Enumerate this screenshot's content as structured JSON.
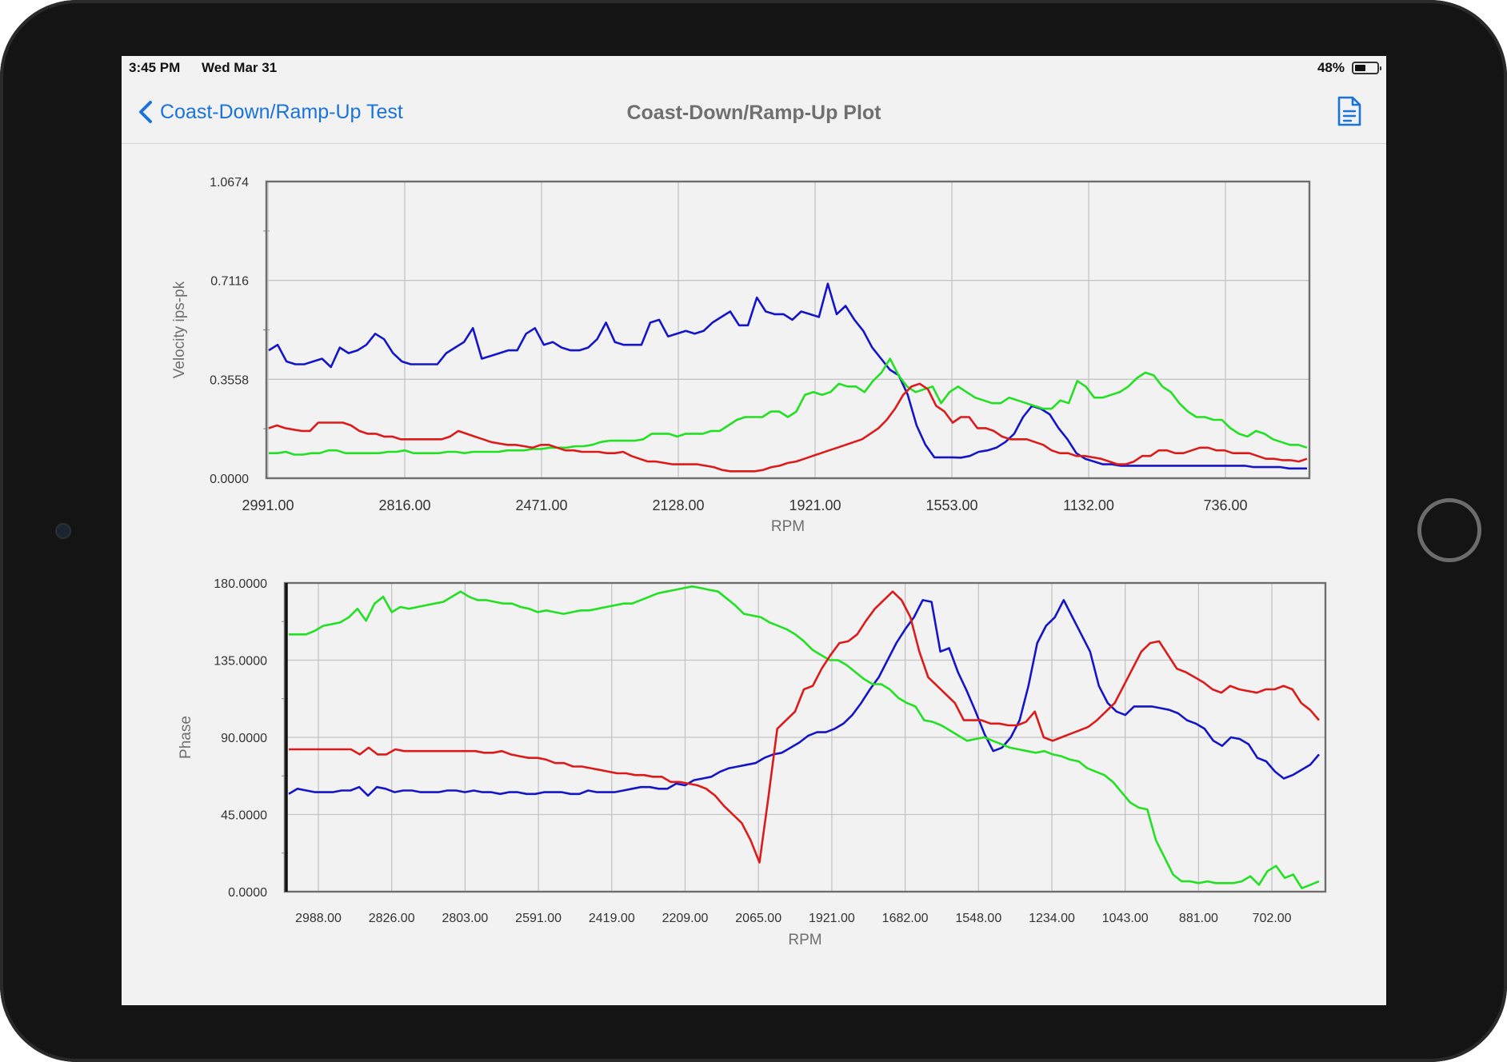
{
  "status_bar": {
    "time": "3:45 PM",
    "date": "Wed Mar 31",
    "battery": "48%"
  },
  "nav": {
    "back_label": "Coast-Down/Ramp-Up Test",
    "title": "Coast-Down/Ramp-Up Plot",
    "share_icon": "document-icon"
  },
  "colors": {
    "accent": "#1a73d9",
    "blue": "#1515c8",
    "green": "#22e022",
    "red": "#dd1a1a"
  },
  "chart_data": [
    {
      "type": "line",
      "title": "",
      "xlabel": "RPM",
      "ylabel": "Velocity ips-pk",
      "ylim": [
        0,
        1.0674
      ],
      "y_ticks": [
        "0.0000",
        "0.3558",
        "0.7116",
        "1.0674"
      ],
      "x_tick_labels": [
        "2991.00",
        "2816.00",
        "2471.00",
        "2128.00",
        "1921.00",
        "1553.00",
        "1132.00",
        "736.00"
      ],
      "grid": true,
      "series": [
        {
          "color": "blue",
          "values": [
            0.46,
            0.48,
            0.42,
            0.41,
            0.41,
            0.42,
            0.43,
            0.4,
            0.47,
            0.45,
            0.46,
            0.48,
            0.52,
            0.5,
            0.45,
            0.42,
            0.41,
            0.41,
            0.41,
            0.41,
            0.45,
            0.47,
            0.49,
            0.54,
            0.43,
            0.44,
            0.45,
            0.46,
            0.46,
            0.52,
            0.54,
            0.48,
            0.49,
            0.47,
            0.46,
            0.46,
            0.47,
            0.5,
            0.56,
            0.49,
            0.48,
            0.48,
            0.48,
            0.56,
            0.57,
            0.51,
            0.52,
            0.53,
            0.52,
            0.53,
            0.56,
            0.58,
            0.6,
            0.55,
            0.55,
            0.65,
            0.6,
            0.59,
            0.59,
            0.57,
            0.6,
            0.59,
            0.58,
            0.7,
            0.59,
            0.62,
            0.57,
            0.53,
            0.47,
            0.43,
            0.39,
            0.37,
            0.3,
            0.19,
            0.12,
            0.075,
            0.075,
            0.075,
            0.074,
            0.08,
            0.095,
            0.1,
            0.11,
            0.13,
            0.16,
            0.22,
            0.26,
            0.25,
            0.23,
            0.18,
            0.14,
            0.09,
            0.07,
            0.06,
            0.05,
            0.05,
            0.045,
            0.045,
            0.045,
            0.045,
            0.045,
            0.045,
            0.045,
            0.045,
            0.045,
            0.045,
            0.045,
            0.045,
            0.045,
            0.045,
            0.045,
            0.04,
            0.04,
            0.04,
            0.04,
            0.035,
            0.035,
            0.035
          ]
        },
        {
          "color": "green",
          "values": [
            0.09,
            0.09,
            0.095,
            0.085,
            0.085,
            0.09,
            0.09,
            0.1,
            0.1,
            0.09,
            0.09,
            0.09,
            0.09,
            0.09,
            0.095,
            0.095,
            0.1,
            0.09,
            0.09,
            0.09,
            0.09,
            0.095,
            0.095,
            0.09,
            0.095,
            0.095,
            0.095,
            0.095,
            0.1,
            0.1,
            0.1,
            0.105,
            0.105,
            0.11,
            0.11,
            0.11,
            0.115,
            0.115,
            0.12,
            0.13,
            0.135,
            0.135,
            0.135,
            0.135,
            0.14,
            0.16,
            0.16,
            0.16,
            0.15,
            0.16,
            0.16,
            0.16,
            0.17,
            0.17,
            0.19,
            0.21,
            0.22,
            0.22,
            0.22,
            0.24,
            0.24,
            0.22,
            0.24,
            0.3,
            0.31,
            0.3,
            0.31,
            0.34,
            0.33,
            0.33,
            0.31,
            0.35,
            0.38,
            0.43,
            0.37,
            0.33,
            0.31,
            0.32,
            0.33,
            0.27,
            0.31,
            0.33,
            0.31,
            0.29,
            0.28,
            0.27,
            0.27,
            0.29,
            0.28,
            0.27,
            0.26,
            0.25,
            0.25,
            0.28,
            0.27,
            0.35,
            0.33,
            0.29,
            0.29,
            0.3,
            0.31,
            0.33,
            0.36,
            0.38,
            0.37,
            0.33,
            0.31,
            0.27,
            0.24,
            0.22,
            0.22,
            0.21,
            0.21,
            0.18,
            0.16,
            0.15,
            0.17,
            0.16,
            0.14,
            0.13,
            0.12,
            0.12,
            0.11
          ]
        },
        {
          "color": "red",
          "values": [
            0.18,
            0.19,
            0.18,
            0.175,
            0.17,
            0.17,
            0.2,
            0.2,
            0.2,
            0.2,
            0.19,
            0.17,
            0.16,
            0.16,
            0.15,
            0.15,
            0.14,
            0.14,
            0.14,
            0.14,
            0.14,
            0.14,
            0.15,
            0.17,
            0.16,
            0.15,
            0.14,
            0.13,
            0.125,
            0.12,
            0.12,
            0.115,
            0.11,
            0.12,
            0.12,
            0.11,
            0.1,
            0.1,
            0.095,
            0.095,
            0.095,
            0.09,
            0.09,
            0.095,
            0.08,
            0.07,
            0.06,
            0.06,
            0.055,
            0.05,
            0.05,
            0.05,
            0.05,
            0.045,
            0.04,
            0.03,
            0.025,
            0.025,
            0.025,
            0.025,
            0.03,
            0.04,
            0.045,
            0.055,
            0.06,
            0.07,
            0.08,
            0.09,
            0.1,
            0.11,
            0.12,
            0.13,
            0.14,
            0.16,
            0.18,
            0.21,
            0.25,
            0.3,
            0.33,
            0.34,
            0.32,
            0.26,
            0.24,
            0.2,
            0.22,
            0.22,
            0.18,
            0.18,
            0.17,
            0.15,
            0.14,
            0.14,
            0.14,
            0.13,
            0.12,
            0.1,
            0.09,
            0.09,
            0.08,
            0.08,
            0.075,
            0.07,
            0.06,
            0.05,
            0.05,
            0.06,
            0.08,
            0.08,
            0.1,
            0.1,
            0.09,
            0.09,
            0.1,
            0.11,
            0.11,
            0.1,
            0.1,
            0.09,
            0.09,
            0.09,
            0.08,
            0.07,
            0.07,
            0.065,
            0.065,
            0.06,
            0.07
          ]
        }
      ]
    },
    {
      "type": "line",
      "title": "",
      "xlabel": "RPM",
      "ylabel": "Phase",
      "ylim": [
        0,
        180
      ],
      "y_ticks": [
        "0.0000",
        "45.0000",
        "90.0000",
        "135.0000",
        "180.0000"
      ],
      "x_tick_labels": [
        "2988.00",
        "2826.00",
        "2803.00",
        "2591.00",
        "2419.00",
        "2209.00",
        "2065.00",
        "1921.00",
        "1682.00",
        "1548.00",
        "1234.00",
        "1043.00",
        "881.00",
        "702.00"
      ],
      "grid": true,
      "series": [
        {
          "color": "blue",
          "values": [
            57,
            60,
            59,
            58,
            58,
            58,
            59,
            59,
            61,
            56,
            61,
            60,
            58,
            59,
            59,
            58,
            58,
            58,
            59,
            59,
            58,
            59,
            58,
            58,
            57,
            58,
            58,
            57,
            57,
            58,
            58,
            58,
            57,
            57,
            59,
            58,
            58,
            58,
            59,
            60,
            61,
            61,
            60,
            60,
            63,
            62,
            65,
            66,
            67,
            70,
            72,
            73,
            74,
            75,
            78,
            80,
            81,
            84,
            87,
            91,
            93,
            93,
            95,
            98,
            103,
            110,
            118,
            125,
            135,
            145,
            153,
            160,
            170,
            169,
            140,
            142,
            128,
            117,
            105,
            92,
            82,
            84,
            90,
            100,
            120,
            145,
            155,
            160,
            170,
            160,
            150,
            140,
            120,
            110,
            105,
            103,
            108,
            108,
            108,
            107,
            106,
            104,
            100,
            98,
            95,
            88,
            85,
            90,
            89,
            86,
            78,
            76,
            70,
            66,
            68,
            71,
            74,
            80
          ]
        },
        {
          "color": "green",
          "values": [
            150,
            150,
            150,
            152,
            155,
            156,
            157,
            160,
            165,
            158,
            168,
            172,
            163,
            166,
            165,
            166,
            167,
            168,
            169,
            172,
            175,
            172,
            170,
            170,
            169,
            168,
            168,
            166,
            165,
            163,
            164,
            163,
            162,
            163,
            164,
            164,
            165,
            166,
            167,
            168,
            168,
            170,
            172,
            174,
            175,
            176,
            177,
            178,
            177,
            176,
            175,
            171,
            167,
            162,
            161,
            160,
            157,
            155,
            153,
            150,
            146,
            141,
            138,
            135,
            135,
            132,
            128,
            124,
            121,
            121,
            118,
            113,
            110,
            108,
            100,
            99,
            97,
            94,
            91,
            88,
            89,
            90,
            88,
            86,
            84,
            83,
            82,
            81,
            82,
            80,
            79,
            77,
            76,
            72,
            70,
            68,
            64,
            58,
            52,
            49,
            48,
            30,
            20,
            10,
            6,
            6,
            5,
            6,
            5,
            5,
            5,
            6,
            9,
            4,
            12,
            15,
            8,
            10,
            2,
            4,
            6
          ]
        },
        {
          "color": "red",
          "values": [
            83,
            83,
            83,
            83,
            83,
            83,
            83,
            83,
            80,
            84,
            80,
            80,
            83,
            82,
            82,
            82,
            82,
            82,
            82,
            82,
            82,
            82,
            81,
            81,
            82,
            80,
            79,
            78,
            78,
            77,
            75,
            75,
            73,
            73,
            72,
            71,
            70,
            69,
            69,
            68,
            68,
            67,
            67,
            64,
            64,
            63,
            62,
            60,
            56,
            50,
            45,
            40,
            30,
            17,
            55,
            95,
            100,
            105,
            118,
            120,
            130,
            138,
            145,
            146,
            150,
            158,
            165,
            170,
            175,
            170,
            160,
            140,
            125,
            120,
            115,
            110,
            100,
            100,
            100,
            98,
            98,
            97,
            97,
            99,
            105,
            90,
            88,
            90,
            92,
            94,
            96,
            100,
            105,
            110,
            120,
            130,
            140,
            145,
            146,
            138,
            130,
            128,
            125,
            122,
            118,
            116,
            120,
            118,
            117,
            116,
            118,
            118,
            120,
            118,
            110,
            106,
            100
          ]
        }
      ]
    }
  ]
}
